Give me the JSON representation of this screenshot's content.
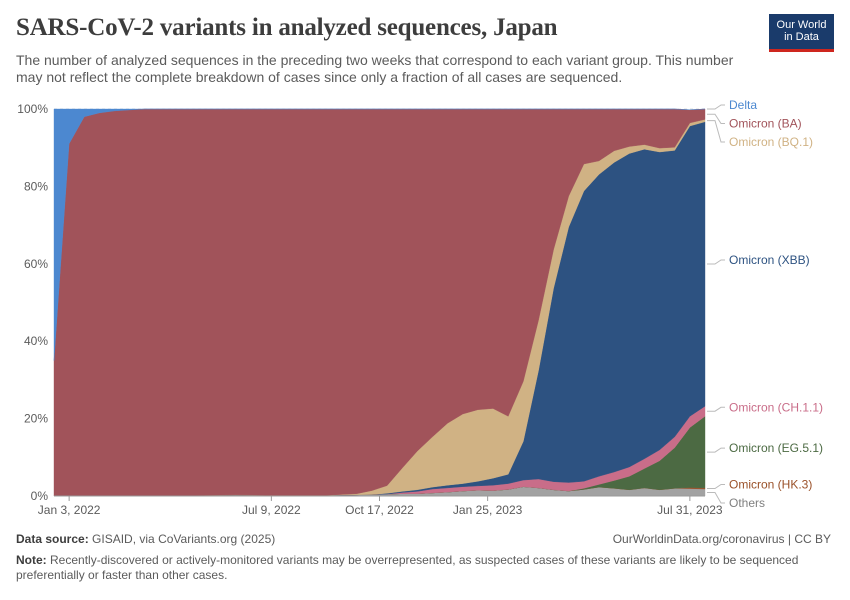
{
  "header": {
    "title": "SARS-CoV-2 variants in analyzed sequences, Japan",
    "subtitle": "The number of analyzed sequences in the preceding two weeks that correspond to each variant group. This number may not reflect the complete breakdown of cases since only a fraction of all cases are sequenced.",
    "logo_line1": "Our World",
    "logo_line2": "in Data"
  },
  "footer": {
    "source_label": "Data source:",
    "source": "GISAID, via CoVariants.org (2025)",
    "url": "OurWorldinData.org/coronavirus | CC BY",
    "note_label": "Note:",
    "note": "Recently-discovered or actively-monitored variants may be overrepresented, as suspected cases of these variants are likely to be sequenced preferentially or faster than other cases."
  },
  "chart_data": {
    "type": "area",
    "stacked": true,
    "x": [
      "2021-12-20",
      "2022-01-03",
      "2022-01-17",
      "2022-01-31",
      "2022-02-14",
      "2022-03-14",
      "2022-04-11",
      "2022-05-09",
      "2022-06-06",
      "2022-07-04",
      "2022-08-01",
      "2022-08-29",
      "2022-09-26",
      "2022-10-10",
      "2022-10-24",
      "2022-11-07",
      "2022-11-21",
      "2022-12-05",
      "2022-12-19",
      "2023-01-02",
      "2023-01-16",
      "2023-01-30",
      "2023-02-13",
      "2023-02-27",
      "2023-03-13",
      "2023-03-27",
      "2023-04-10",
      "2023-04-24",
      "2023-05-08",
      "2023-05-22",
      "2023-06-05",
      "2023-06-19",
      "2023-07-03",
      "2023-07-17",
      "2023-07-31",
      "2023-08-14"
    ],
    "x_tick_labels": [
      "Jan 3, 2022",
      "Jul 9, 2022",
      "Oct 17, 2022",
      "Jan 25, 2023",
      "Jul 31, 2023"
    ],
    "x_tick_values": [
      "2022-01-03",
      "2022-07-09",
      "2022-10-17",
      "2023-01-25",
      "2023-07-31"
    ],
    "y_tick_labels": [
      "0%",
      "20%",
      "40%",
      "60%",
      "80%",
      "100%"
    ],
    "ylim": [
      0,
      100
    ],
    "series": [
      {
        "name": "Others",
        "color": "#a2a2a2",
        "values": [
          0,
          0,
          0,
          0,
          0,
          0,
          0,
          0.2,
          0.3,
          0.2,
          0.2,
          0.2,
          0.3,
          0.4,
          0.5,
          0.6,
          0.6,
          0.8,
          1.0,
          1.3,
          1.5,
          1.4,
          1.7,
          2.4,
          2.1,
          1.6,
          1.3,
          1.7,
          2.3,
          2.0,
          1.6,
          2.1,
          1.6,
          2.0,
          1.9,
          1.8
        ]
      },
      {
        "name": "Omicron (HK.3)",
        "color": "#9a5129",
        "values": [
          0,
          0,
          0,
          0,
          0,
          0,
          0,
          0,
          0,
          0,
          0,
          0,
          0,
          0,
          0,
          0,
          0,
          0,
          0,
          0,
          0,
          0,
          0,
          0,
          0,
          0,
          0,
          0,
          0,
          0,
          0,
          0,
          0,
          0,
          0.3,
          0.3
        ]
      },
      {
        "name": "Omicron (EG.5.1)",
        "color": "#4c6a43",
        "values": [
          0,
          0,
          0,
          0,
          0,
          0,
          0,
          0,
          0,
          0,
          0,
          0,
          0,
          0,
          0,
          0,
          0,
          0,
          0,
          0,
          0,
          0,
          0,
          0,
          0,
          0,
          0,
          0.3,
          0.7,
          2.0,
          3.5,
          5.0,
          7.5,
          10.5,
          15.5,
          18.5
        ]
      },
      {
        "name": "Omicron (CH.1.1)",
        "color": "#c96d89",
        "values": [
          0,
          0,
          0,
          0,
          0,
          0,
          0,
          0,
          0,
          0,
          0,
          0,
          0,
          0,
          0,
          0.3,
          0.6,
          1.0,
          1.1,
          1.1,
          1.1,
          1.4,
          1.5,
          1.7,
          2.3,
          2.1,
          2.2,
          1.8,
          2.1,
          2.2,
          2.4,
          2.5,
          2.8,
          2.8,
          2.9,
          2.6
        ]
      },
      {
        "name": "Omicron (XBB)",
        "color": "#2d5281",
        "values": [
          0,
          0,
          0,
          0,
          0,
          0,
          0,
          0,
          0,
          0,
          0,
          0,
          0,
          0,
          0.2,
          0.3,
          0.4,
          0.5,
          0.7,
          0.8,
          1.2,
          1.8,
          2.4,
          10.0,
          28.0,
          50.0,
          66.0,
          75.0,
          78.0,
          80.0,
          81.0,
          80.0,
          77.0,
          74.0,
          75.0,
          73.5
        ]
      },
      {
        "name": "Omicron (BQ.1)",
        "color": "#d0b284",
        "values": [
          0,
          0,
          0,
          0,
          0,
          0,
          0,
          0,
          0,
          0,
          0,
          0,
          0.3,
          1.0,
          2.0,
          6.0,
          10.0,
          13.0,
          16.0,
          18.0,
          18.5,
          18.0,
          15.0,
          15.5,
          13.0,
          10.0,
          8.0,
          7.0,
          3.5,
          3.0,
          1.8,
          1.2,
          1.0,
          0.8,
          0.8,
          0.6
        ]
      },
      {
        "name": "Omicron (BA)",
        "color": "#a1535a",
        "values": [
          35,
          91,
          98,
          99,
          99.5,
          100,
          100,
          99.8,
          99.7,
          99.8,
          99.8,
          99.8,
          99.4,
          98.6,
          97.3,
          92.8,
          88.4,
          84.7,
          81.2,
          78.8,
          77.7,
          77.4,
          79.4,
          70.4,
          54.6,
          36.3,
          22.5,
          14.2,
          13.4,
          10.8,
          9.7,
          9.2,
          10.1,
          9.9,
          3.4,
          2.7
        ]
      },
      {
        "name": "Delta",
        "color": "#4c88d0",
        "values": [
          65,
          9,
          2,
          1,
          0.5,
          0,
          0,
          0,
          0,
          0,
          0,
          0,
          0,
          0,
          0,
          0,
          0,
          0,
          0,
          0,
          0,
          0,
          0,
          0,
          0,
          0,
          0,
          0,
          0,
          0,
          0,
          0,
          0,
          0,
          0,
          0
        ]
      }
    ],
    "legend_position": "right, labels at series ends",
    "grid": "horizontal dashed"
  }
}
